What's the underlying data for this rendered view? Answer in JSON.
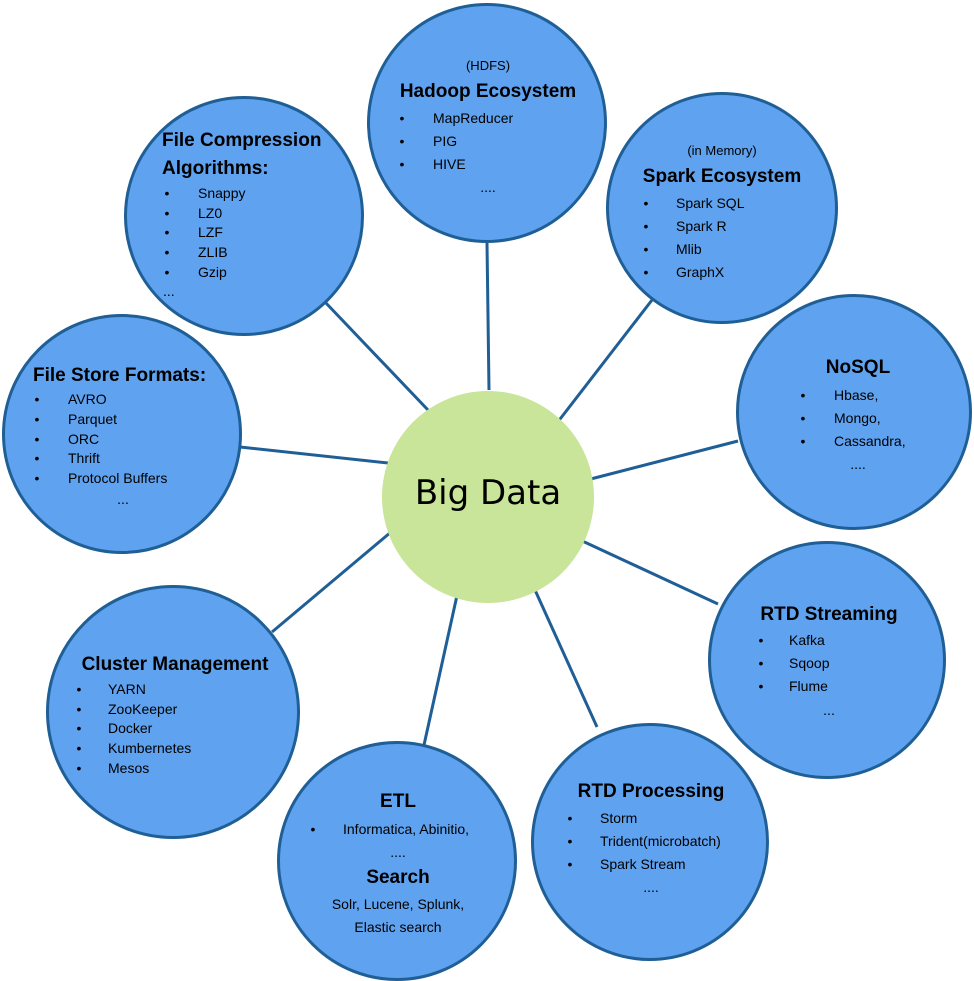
{
  "center": {
    "title": "Big Data"
  },
  "hadoop": {
    "note": "(HDFS)",
    "title": "Hadoop Ecosystem",
    "items": [
      "MapReducer",
      "PIG",
      "HIVE"
    ],
    "more": "...."
  },
  "spark": {
    "note": "(in Memory)",
    "title": "Spark Ecosystem",
    "items": [
      "Spark SQL",
      "Spark R",
      "Mlib",
      "GraphX"
    ]
  },
  "compression": {
    "title_line1": "File Compression",
    "title_line2": "Algorithms:",
    "items": [
      "Snappy",
      "LZ0",
      "LZF",
      "ZLIB",
      "Gzip"
    ],
    "more": "..."
  },
  "nosql": {
    "title": "NoSQL",
    "items": [
      "Hbase,",
      "Mongo,",
      "Cassandra,"
    ],
    "more": "...."
  },
  "formats": {
    "title": "File Store Formats:",
    "items": [
      "AVRO",
      "Parquet",
      "ORC",
      "Thrift",
      "Protocol Buffers"
    ],
    "more": "..."
  },
  "streaming": {
    "title": "RTD Streaming",
    "items": [
      "Kafka",
      "Sqoop",
      "Flume"
    ],
    "more": "..."
  },
  "cluster": {
    "title": "Cluster Management",
    "items": [
      "YARN",
      "ZooKeeper",
      "Docker",
      "Kumbernetes",
      "Mesos"
    ]
  },
  "etl": {
    "title": "ETL",
    "items": [
      "Informatica, Abinitio,"
    ],
    "more": "....",
    "search_title": "Search",
    "search_line1": "Solr, Lucene, Splunk,",
    "search_line2": "Elastic search"
  },
  "processing": {
    "title": "RTD Processing",
    "items": [
      "Storm",
      "Trident(microbatch)",
      "Spark Stream"
    ],
    "more": "...."
  },
  "colors": {
    "node_fill": "#5fa2f0",
    "node_border": "#1f5f96",
    "center_fill": "#c8e59a",
    "connector": "#1f5f96"
  }
}
